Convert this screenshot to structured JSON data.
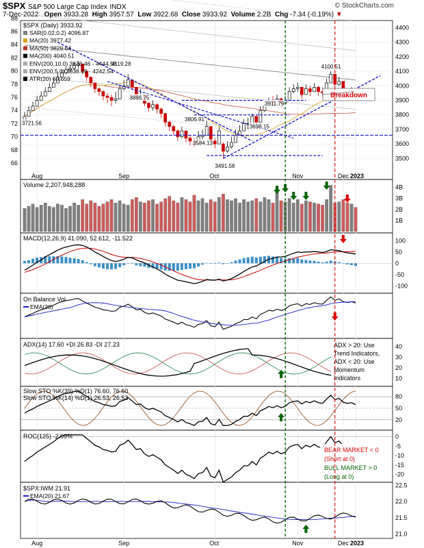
{
  "header": {
    "symbol": "$SPX",
    "name": "S&P 500 Large Cap Index",
    "exchange": "INDX",
    "date": "7-Dec-2022",
    "open_label": "Open",
    "open": "3933.28",
    "high_label": "High",
    "high": "3957.57",
    "low_label": "Low",
    "low": "3922.68",
    "close_label": "Close",
    "close": "3933.92",
    "volume_label": "Volume",
    "volume": "2.2B",
    "chg_label": "Chg",
    "chg": "-7.34 (-0.19%)",
    "chg_arrow": "▼",
    "brand": "© StockCharts.com"
  },
  "colors": {
    "up": "#000000",
    "down": "#cc0000",
    "volume_up": "#808080",
    "volume_down": "#cd5c5c",
    "ma20": "#d4a017",
    "ma50": "#c0392b",
    "ma200": "#000000",
    "env": "#aaaaaa",
    "trend": "#1a1acc",
    "signal_green": "#006400",
    "signal_red": "#e00000",
    "macd_hist": "#3a8fc7",
    "ema": "#1a1acc",
    "adx_plus": "#2e8b57",
    "adx_minus": "#cd5c5c"
  },
  "chart_data": [
    {
      "panel": "price",
      "type": "candlestick",
      "title": "$SPX (Daily) 3933.92",
      "legend": [
        {
          "name": "SAR(0.02,0.2) 4096.87",
          "color": "#808080"
        },
        {
          "name": "MA(20) 3977.42",
          "color": "#d4a017"
        },
        {
          "name": "MA(50) 3829.64",
          "color": "#c0392b"
        },
        {
          "name": "MA(200) 4040.51",
          "color": "#000000"
        },
        {
          "name": "ENV(200,10.0) 3636.46 - 4444.56",
          "color": "#aaaaaa"
        },
        {
          "name": "ENV(200,5.0) 3838.49 - 4242.54",
          "color": "#aaaaaa"
        },
        {
          "name": "ATR(20) 69.659",
          "color": "#000000"
        }
      ],
      "y_right_ticks": [
        3500,
        3600,
        3700,
        3800,
        3900,
        4000,
        4100,
        4200,
        4300,
        4400
      ],
      "y_left_ticks": [
        66,
        68,
        70,
        72,
        74,
        76,
        78,
        80,
        82,
        84,
        86,
        88
      ],
      "x_ticks": [
        "Aug",
        "Sep",
        "Oct",
        "Nov",
        "Dec",
        "2023"
      ],
      "ylim": [
        3450,
        4430
      ],
      "annotations": [
        {
          "text": "4119.28",
          "date": "Aug 16",
          "value": 4119.28
        },
        {
          "text": "3886.75",
          "date": "Sep 6",
          "value": 3886.75
        },
        {
          "text": "3806.91",
          "date": "Oct 5",
          "value": 3806.91
        },
        {
          "text": "3911.79",
          "date": "Nov 15",
          "value": 3911.79
        },
        {
          "text": "4100.51",
          "date": "Dec 1",
          "value": 4100.51
        },
        {
          "text": "3698.15",
          "date": "Nov 9",
          "value": 3698.15
        },
        {
          "text": "3584.13",
          "date": "Oct 3",
          "value": 3584.13
        },
        {
          "text": "3491.58",
          "date": "Oct 13",
          "value": 3491.58
        },
        {
          "text": "3721.56",
          "date": "Jul 14",
          "value": 3721.56
        }
      ],
      "callout": "Breakdown",
      "close_series": [
        3790,
        3830,
        3860,
        3900,
        3930,
        3960,
        3990,
        4020,
        4060,
        4090,
        4110,
        4120,
        4140,
        4150,
        4100,
        4060,
        4020,
        3980,
        3960,
        3930,
        3920,
        3900,
        3910,
        3980,
        4000,
        4040,
        3990,
        3930,
        3940,
        3880,
        3850,
        3870,
        3840,
        3810,
        3750,
        3720,
        3690,
        3650,
        3690,
        3640,
        3620,
        3590,
        3650,
        3660,
        3720,
        3620,
        3600,
        3690,
        3550,
        3580,
        3610,
        3660,
        3690,
        3740,
        3740,
        3790,
        3750,
        3830,
        3860,
        3900,
        3880,
        3910,
        3880,
        3900,
        3960,
        3980,
        3990,
        3940,
        3980,
        3960,
        3990,
        3960,
        3950,
        4020,
        4080,
        4010,
        4030,
        3970,
        3950,
        3960,
        3930
      ],
      "high_series": [
        3820,
        3860,
        3890,
        3930,
        3960,
        3990,
        4020,
        4050,
        4090,
        4110,
        4130,
        4140,
        4160,
        4170,
        4140,
        4100,
        4050,
        4020,
        3990,
        3970,
        3950,
        3940,
        3960,
        4010,
        4040,
        4080,
        4040,
        3980,
        3980,
        3930,
        3890,
        3900,
        3880,
        3850,
        3800,
        3760,
        3730,
        3700,
        3720,
        3690,
        3660,
        3640,
        3690,
        3700,
        3760,
        3690,
        3640,
        3720,
        3610,
        3620,
        3650,
        3700,
        3730,
        3770,
        3780,
        3810,
        3790,
        3860,
        3890,
        3920,
        3930,
        3940,
        3920,
        3930,
        3990,
        4010,
        4020,
        3980,
        4010,
        4000,
        4020,
        4000,
        3990,
        4050,
        4100,
        4070,
        4060,
        4010,
        3980,
        3990,
        3960
      ],
      "low_series": [
        3760,
        3800,
        3830,
        3870,
        3900,
        3930,
        3960,
        3990,
        4030,
        4060,
        4080,
        4090,
        4110,
        4120,
        4080,
        4030,
        3990,
        3950,
        3930,
        3900,
        3880,
        3860,
        3880,
        3930,
        3970,
        4000,
        3970,
        3910,
        3900,
        3860,
        3820,
        3830,
        3810,
        3780,
        3720,
        3690,
        3660,
        3620,
        3640,
        3610,
        3590,
        3580,
        3610,
        3630,
        3670,
        3590,
        3570,
        3640,
        3500,
        3540,
        3570,
        3620,
        3660,
        3700,
        3700,
        3750,
        3720,
        3790,
        3820,
        3860,
        3860,
        3870,
        3850,
        3870,
        3920,
        3950,
        3960,
        3910,
        3940,
        3930,
        3960,
        3930,
        3920,
        3980,
        4040,
        3990,
        4000,
        3950,
        3920,
        3930,
        3920
      ],
      "open_series": [
        3760,
        3790,
        3830,
        3860,
        3900,
        3930,
        3960,
        3990,
        4020,
        4060,
        4090,
        4110,
        4120,
        4140,
        4150,
        4100,
        4060,
        4020,
        3980,
        3960,
        3930,
        3920,
        3900,
        3910,
        3980,
        4000,
        4040,
        3990,
        3930,
        3940,
        3880,
        3850,
        3870,
        3840,
        3810,
        3750,
        3720,
        3690,
        3650,
        3690,
        3640,
        3620,
        3590,
        3650,
        3660,
        3720,
        3620,
        3600,
        3600,
        3550,
        3580,
        3610,
        3660,
        3690,
        3740,
        3740,
        3790,
        3750,
        3830,
        3860,
        3900,
        3880,
        3910,
        3880,
        3900,
        3960,
        3980,
        3990,
        3940,
        3980,
        3960,
        3990,
        3960,
        3950,
        4020,
        4080,
        4010,
        4030,
        3970,
        3950,
        3960
      ]
    },
    {
      "panel": "volume",
      "type": "bar",
      "title": "Volume 2,207,948,288",
      "y_ticks": [
        "1B",
        "2B",
        "3B",
        "4B"
      ],
      "values": [
        2.1,
        2.3,
        2.5,
        2.2,
        2.4,
        2.6,
        2.3,
        2.2,
        2.5,
        2.4,
        2.1,
        2.3,
        2.6,
        2.4,
        2.9,
        2.5,
        2.8,
        2.6,
        2.3,
        2.5,
        2.7,
        2.9,
        2.6,
        2.8,
        2.5,
        2.4,
        2.9,
        3.1,
        2.7,
        2.6,
        2.8,
        2.9,
        2.5,
        2.7,
        3.0,
        3.2,
        2.8,
        2.6,
        3.1,
        2.9,
        2.7,
        3.3,
        2.8,
        3.0,
        2.6,
        2.9,
        2.7,
        3.1,
        3.4,
        2.9,
        2.8,
        3.0,
        2.6,
        2.9,
        2.7,
        2.8,
        3.0,
        2.7,
        3.1,
        2.9,
        2.6,
        3.9,
        2.8,
        2.7,
        3.0,
        2.6,
        2.9,
        2.5,
        2.8,
        2.7,
        2.6,
        2.5,
        2.4,
        2.9,
        4.2,
        2.6,
        2.7,
        2.9,
        2.6,
        2.5,
        2.2
      ]
    },
    {
      "panel": "macd",
      "type": "line",
      "title": "MACD(12,26,9) 41.090, 52.612, -11.522",
      "y_ticks": [
        -100,
        -50,
        0,
        50,
        100
      ],
      "ylim": [
        -120,
        110
      ],
      "series": [
        {
          "name": "MACD",
          "values": [
            -30,
            -20,
            -8,
            5,
            15,
            28,
            38,
            48,
            58,
            66,
            72,
            76,
            80,
            82,
            79,
            72,
            62,
            50,
            40,
            30,
            20,
            12,
            8,
            12,
            18,
            26,
            24,
            15,
            8,
            2,
            -8,
            -16,
            -25,
            -35,
            -48,
            -58,
            -66,
            -75,
            -78,
            -82,
            -86,
            -90,
            -86,
            -80,
            -72,
            -74,
            -75,
            -70,
            -78,
            -74,
            -68,
            -58,
            -48,
            -36,
            -26,
            -16,
            -12,
            -2,
            8,
            18,
            22,
            28,
            28,
            30,
            38,
            44,
            50,
            48,
            50,
            50,
            52,
            50,
            48,
            52,
            60,
            58,
            56,
            50,
            46,
            44,
            41
          ]
        },
        {
          "name": "Signal",
          "values": [
            -40,
            -34,
            -28,
            -20,
            -12,
            -3,
            7,
            17,
            27,
            36,
            44,
            52,
            58,
            63,
            66,
            67,
            66,
            63,
            58,
            53,
            46,
            39,
            33,
            29,
            27,
            26,
            26,
            24,
            21,
            17,
            12,
            6,
            -1,
            -8,
            -16,
            -25,
            -33,
            -42,
            -49,
            -56,
            -62,
            -68,
            -72,
            -74,
            -74,
            -74,
            -74,
            -73,
            -74,
            -74,
            -73,
            -70,
            -65,
            -59,
            -52,
            -45,
            -38,
            -31,
            -23,
            -15,
            -8,
            -1,
            5,
            10,
            16,
            21,
            27,
            31,
            35,
            38,
            41,
            43,
            44,
            45,
            48,
            50,
            51,
            51,
            51,
            52,
            52.6
          ]
        }
      ]
    },
    {
      "panel": "obv",
      "type": "line",
      "title": "On Balance Vol",
      "legend": [
        "EMA(20)"
      ]
    },
    {
      "panel": "adx",
      "type": "line",
      "title": "ADX(14) 17.60 +DI 26.83 -DI 27.23",
      "y_ticks": [
        10,
        20,
        30,
        40
      ],
      "note": "ADX > 20: Use Trend Indicators, ADX < 20: Use Momentum Indicators"
    },
    {
      "panel": "stoch",
      "type": "line",
      "title1": "Slow STO %K(39) %D(1) 76.60, 76.60",
      "title2": "Slow STO %K(14) %D(1) 26.53, 26.53",
      "y_ticks": [
        20,
        50,
        80
      ]
    },
    {
      "panel": "roc",
      "type": "line",
      "title": "ROC(125) -2.09%",
      "y_ticks": [
        -20,
        -15,
        -10,
        -5,
        0
      ],
      "notes": [
        "BEAR MARKET < 0",
        "(Short at 0)",
        "BULL MARKET > 0",
        "(Long at 0)"
      ]
    },
    {
      "panel": "ratio",
      "type": "line",
      "title": "$SPX:IWM 21.91",
      "legend": [
        "EMA(20) 21.67"
      ],
      "y_ticks": [
        21.0,
        21.5,
        22.0,
        22.5
      ],
      "x_ticks": [
        "Aug",
        "Sep",
        "Oct",
        "Nov",
        "Dec",
        "2023"
      ]
    }
  ]
}
